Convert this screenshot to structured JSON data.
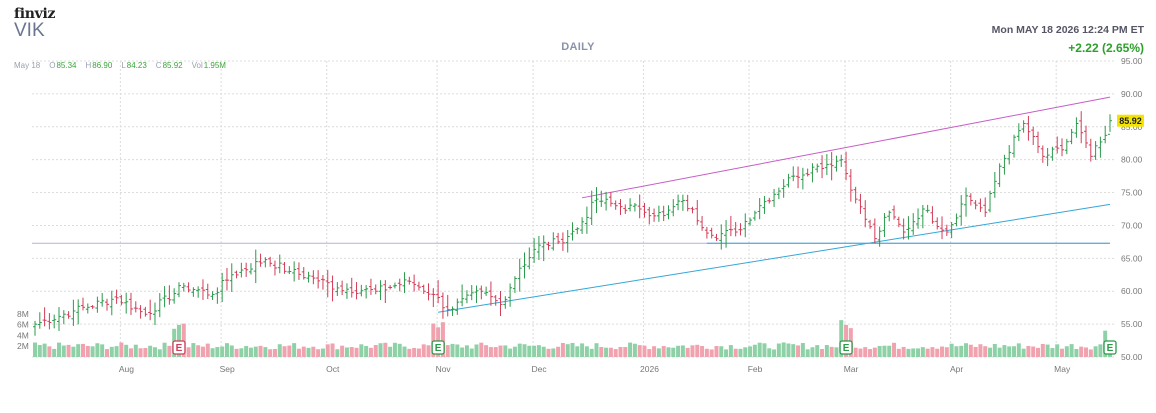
{
  "header": {
    "brand": "finviz",
    "ticker": "VIK",
    "period": "DAILY",
    "datetime": "Mon MAY 18 2026 12:24 PM ET",
    "change": "+2.22 (2.65%)"
  },
  "ohlc": {
    "date": "May 18",
    "open_label": "O",
    "open": "85.34",
    "high_label": "H",
    "high": "86.90",
    "low_label": "L",
    "low": "84.23",
    "close_label": "C",
    "close": "85.92",
    "vol_label": "Vol",
    "vol": "1.95M"
  },
  "colors": {
    "up": "#2a9a4a",
    "down": "#d23c57",
    "vol_up": "#8fd1a6",
    "vol_down": "#f0a2ae",
    "grid": "#dcdcdc",
    "upper_trendline": "#c75cc7",
    "lower_trendline": "#33a7d8",
    "horizontal_line": "#b0b4d8",
    "support_segment": "#33a7d8",
    "price_tag": "#f5e400",
    "earnings_marker": "#2a9a4a",
    "earnings_marker_q3": "#d23c57"
  },
  "chart_data": {
    "type": "ohlc",
    "price_axis": {
      "ticks": [
        "95.00",
        "90.00",
        "85.00",
        "80.00",
        "75.00",
        "70.00",
        "65.00",
        "60.00",
        "55.00",
        "50.00"
      ],
      "ylim": [
        50,
        95
      ]
    },
    "volume_axis": {
      "ticks": [
        "8M",
        "6M",
        "4M",
        "2M"
      ]
    },
    "x_months": [
      "Aug",
      "Sep",
      "Oct",
      "Nov",
      "Dec",
      "2026",
      "Feb",
      "Mar",
      "Apr",
      "May"
    ],
    "last_price_label": "85.92",
    "earnings_marker_label": "E",
    "earnings_markers": [
      "Aug 19 2025",
      "Nov 3 2025",
      "Mar 2 2026",
      "May 18 2026"
    ],
    "trendlines": [
      {
        "name": "upper",
        "from": [
          "Dec 15 2025",
          74.2
        ],
        "to": [
          "May 18 2026",
          89.5
        ]
      },
      {
        "name": "lower",
        "from": [
          "Nov 3 2025",
          56.8
        ],
        "to": [
          "May 18 2026",
          73.2
        ]
      },
      {
        "name": "horizontal",
        "from": [
          "Jul 8 2025",
          67.3
        ],
        "to": [
          "May 18 2026",
          67.3
        ]
      },
      {
        "name": "support",
        "from": [
          "Jan 20 2026",
          67.3
        ],
        "to": [
          "May 18 2026",
          67.3
        ]
      }
    ],
    "anchors": [
      [
        "Jul 8 2025",
        55.0
      ],
      [
        "Jul 18 2025",
        57.0
      ],
      [
        "Jul 31 2025",
        59.0
      ],
      [
        "Aug 8 2025",
        56.5
      ],
      [
        "Aug 20 2025",
        60.8
      ],
      [
        "Aug 28 2025",
        59.5
      ],
      [
        "Sep 3 2025",
        62.5
      ],
      [
        "Sep 12 2025",
        64.8
      ],
      [
        "Sep 19 2025",
        63.0
      ],
      [
        "Sep 26 2025",
        62.0
      ],
      [
        "Oct 3 2025",
        60.5
      ],
      [
        "Oct 15 2025",
        60.0
      ],
      [
        "Oct 24 2025",
        61.5
      ],
      [
        "Oct 31 2025",
        59.5
      ],
      [
        "Nov 5 2025",
        57.2
      ],
      [
        "Nov 14 2025",
        60.0
      ],
      [
        "Nov 20 2025",
        58.0
      ],
      [
        "Nov 26 2025",
        63.5
      ],
      [
        "Dec 2 2025",
        67.0
      ],
      [
        "Dec 8 2025",
        67.5
      ],
      [
        "Dec 12 2025",
        69.5
      ],
      [
        "Dec 18 2025",
        74.0
      ],
      [
        "Dec 24 2025",
        73.0
      ],
      [
        "Dec 31 2025",
        72.5
      ],
      [
        "Jan 7 2026",
        71.5
      ],
      [
        "Jan 13 2026",
        73.8
      ],
      [
        "Jan 21 2026",
        68.5
      ],
      [
        "Jan 28 2026",
        69.0
      ],
      [
        "Feb 4 2026",
        73.0
      ],
      [
        "Feb 13 2026",
        77.5
      ],
      [
        "Feb 20 2026",
        79.0
      ],
      [
        "Feb 27 2026",
        80.0
      ],
      [
        "Mar 4 2026",
        74.0
      ],
      [
        "Mar 10 2026",
        68.0
      ],
      [
        "Mar 13 2026",
        72.0
      ],
      [
        "Mar 18 2026",
        69.0
      ],
      [
        "Mar 24 2026",
        72.5
      ],
      [
        "Mar 31 2026",
        69.0
      ],
      [
        "Apr 6 2026",
        74.5
      ],
      [
        "Apr 10 2026",
        72.0
      ],
      [
        "Apr 15 2026",
        79.0
      ],
      [
        "Apr 22 2026",
        85.5
      ],
      [
        "Apr 28 2026",
        80.5
      ],
      [
        "May 4 2026",
        81.5
      ],
      [
        "May 7 2026",
        85.5
      ],
      [
        "May 12 2026",
        80.5
      ],
      [
        "May 15 2026",
        83.7
      ],
      [
        "May 18 2026",
        85.92
      ]
    ]
  }
}
